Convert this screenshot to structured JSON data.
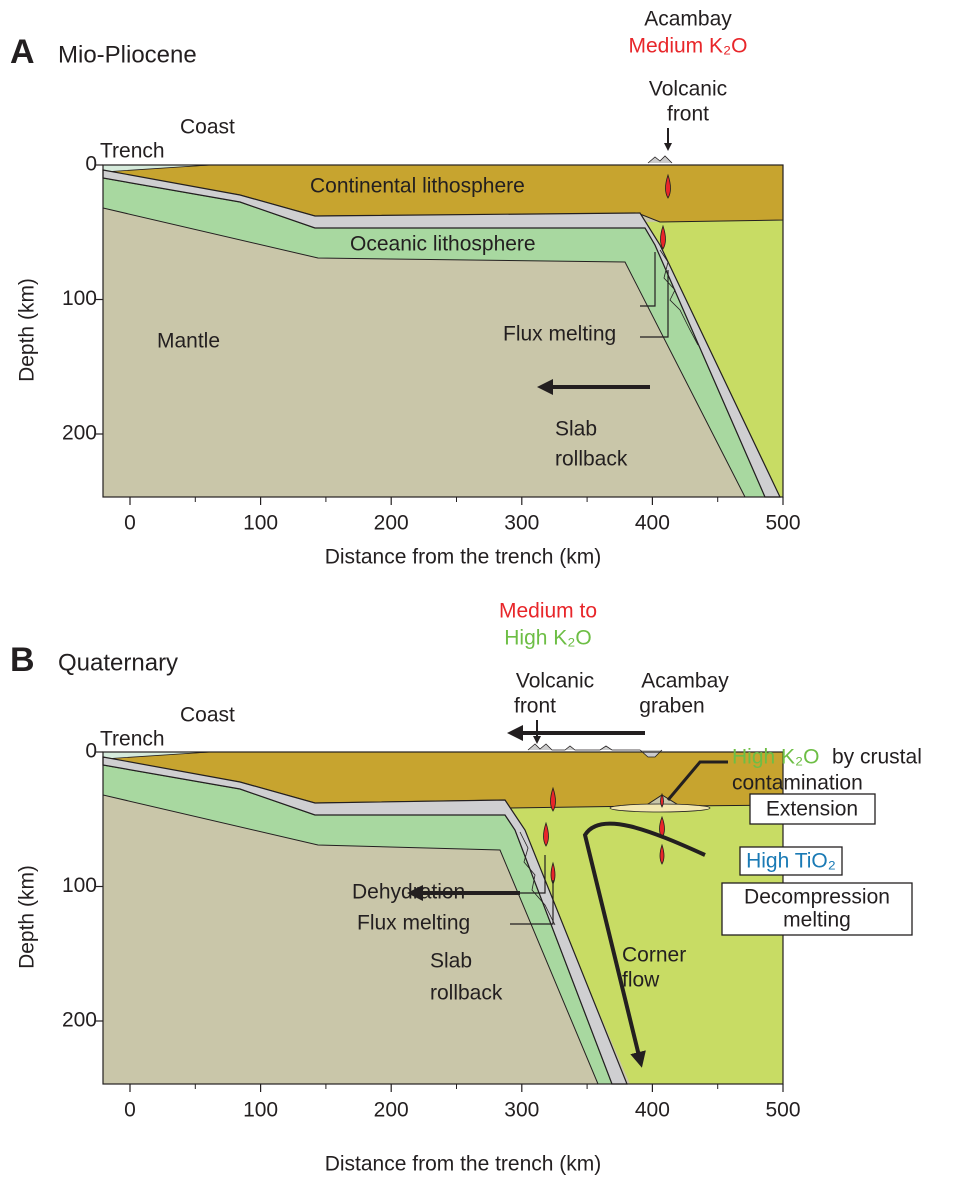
{
  "panels": [
    {
      "label": "A",
      "title": "Mio-Pliocene",
      "xticks": [
        0,
        100,
        200,
        300,
        400,
        500
      ],
      "yticks": [
        0,
        100,
        200
      ],
      "xlabel": "Distance from the trench (km)",
      "ylabel": "Depth (km)",
      "trench": "Trench",
      "coast": "Coast",
      "acambay": "Acambay",
      "composition": "Medium K₂O",
      "volcanic_front": [
        "Volcanic",
        "front"
      ],
      "continental": "Continental lithosphere",
      "oceanic": "Oceanic lithosphere",
      "mantle": "Mantle",
      "flux_melting": "Flux melting",
      "rollback": [
        "Slab",
        "rollback"
      ]
    },
    {
      "label": "B",
      "title": "Quaternary",
      "xticks": [
        0,
        100,
        200,
        300,
        400,
        500
      ],
      "yticks": [
        0,
        100,
        200
      ],
      "xlabel": "Distance from the trench (km)",
      "ylabel": "Depth (km)",
      "trench": "Trench",
      "coast": "Coast",
      "composition": [
        "Medium to",
        "High K₂O"
      ],
      "volcanic_front": [
        "Volcanic",
        "front"
      ],
      "graben": [
        "Acambay",
        "graben"
      ],
      "contamination": [
        "High K₂O",
        "by crustal",
        "contamination"
      ],
      "extension": "Extension",
      "high_tio2": "High TiO₂",
      "decompression": [
        "Decompression",
        "melting"
      ],
      "dehydration": "Dehydration",
      "flux_melting": "Flux melting",
      "corner_flow": [
        "Corner",
        "flow"
      ],
      "rollback": [
        "Slab",
        "rollback"
      ]
    }
  ]
}
